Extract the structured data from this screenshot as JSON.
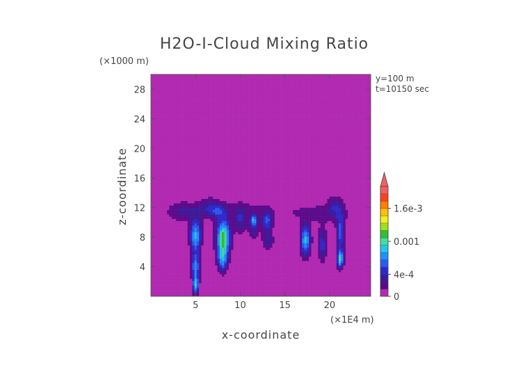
{
  "chart_data": {
    "type": "heatmap",
    "title": "H2O-I-Cloud Mixing Ratio",
    "xlabel": "x-coordinate",
    "ylabel": "z-coordinate",
    "x_unit": "(×1E4 m)",
    "y_unit": "(×1000 m)",
    "annotations": [
      "y=100 m",
      "t=10150 sec"
    ],
    "x_ticks": [
      {
        "value": 5,
        "label": "5"
      },
      {
        "value": 10,
        "label": "10"
      },
      {
        "value": 15,
        "label": "15"
      },
      {
        "value": 20,
        "label": "20"
      }
    ],
    "y_ticks": [
      {
        "value": 4,
        "label": "4"
      },
      {
        "value": 8,
        "label": "8"
      },
      {
        "value": 12,
        "label": "12"
      },
      {
        "value": 16,
        "label": "16"
      },
      {
        "value": 20,
        "label": "20"
      },
      {
        "value": 24,
        "label": "24"
      },
      {
        "value": 28,
        "label": "28"
      }
    ],
    "xlim": [
      0,
      24.6
    ],
    "ylim": [
      0,
      30
    ],
    "colorbar": {
      "min": 0,
      "max": 0.002,
      "labels": [
        {
          "value": 0,
          "label": "0"
        },
        {
          "value": 0.0004,
          "label": "4e-4"
        },
        {
          "value": 0.001,
          "label": "0.001"
        },
        {
          "value": 0.0016,
          "label": "1.6e-3"
        }
      ],
      "extend": "max",
      "colors": [
        "#b42ab4",
        "#5a0a8c",
        "#3a1a9a",
        "#2a2ad0",
        "#2a5af0",
        "#1e90ff",
        "#20c8f0",
        "#40e0a0",
        "#30c030",
        "#a0e020",
        "#f0f020",
        "#ffc000",
        "#ff8000",
        "#ff4020",
        "#f06060"
      ]
    },
    "field": [
      {
        "x": 3.5,
        "z": 11.5,
        "sx": 1.3,
        "sz": 1.0,
        "v": 0.0003
      },
      {
        "x": 5.0,
        "z": 8.2,
        "sx": 0.45,
        "sz": 1.6,
        "v": 0.0009
      },
      {
        "x": 5.0,
        "z": 4.0,
        "sx": 0.3,
        "sz": 1.2,
        "v": 0.0008
      },
      {
        "x": 5.0,
        "z": 1.5,
        "sx": 0.25,
        "sz": 0.9,
        "v": 0.0009
      },
      {
        "x": 8.1,
        "z": 8.0,
        "sx": 0.55,
        "sz": 1.7,
        "v": 0.0012
      },
      {
        "x": 8.0,
        "z": 5.0,
        "sx": 0.4,
        "sz": 1.2,
        "v": 0.0007
      },
      {
        "x": 6.5,
        "z": 12.0,
        "sx": 0.8,
        "sz": 1.0,
        "v": 0.0003
      },
      {
        "x": 7.5,
        "z": 11.5,
        "sx": 0.6,
        "sz": 0.7,
        "v": 0.0003
      },
      {
        "x": 10.0,
        "z": 10.2,
        "sx": 0.5,
        "sz": 1.2,
        "v": 0.0004
      },
      {
        "x": 11.5,
        "z": 9.2,
        "sx": 0.4,
        "sz": 1.0,
        "v": 0.0004
      },
      {
        "x": 11.5,
        "z": 10.4,
        "sx": 0.25,
        "sz": 0.5,
        "v": 0.0007
      },
      {
        "x": 13.0,
        "z": 10.2,
        "sx": 0.45,
        "sz": 0.9,
        "v": 0.0006
      },
      {
        "x": 13.1,
        "z": 7.6,
        "sx": 0.45,
        "sz": 0.9,
        "v": 0.0004
      },
      {
        "x": 10.0,
        "z": 11.8,
        "sx": 3.0,
        "sz": 0.9,
        "v": 0.00018
      },
      {
        "x": 17.3,
        "z": 7.6,
        "sx": 0.4,
        "sz": 1.5,
        "v": 0.0009
      },
      {
        "x": 19.2,
        "z": 7.0,
        "sx": 0.35,
        "sz": 1.6,
        "v": 0.0005
      },
      {
        "x": 20.5,
        "z": 12.3,
        "sx": 0.5,
        "sz": 1.0,
        "v": 0.0003
      },
      {
        "x": 21.2,
        "z": 8.5,
        "sx": 0.3,
        "sz": 2.2,
        "v": 0.0006
      },
      {
        "x": 21.2,
        "z": 5.0,
        "sx": 0.25,
        "sz": 0.8,
        "v": 0.0009
      },
      {
        "x": 20.5,
        "z": 11.2,
        "sx": 2.5,
        "sz": 1.2,
        "v": 0.00015
      },
      {
        "x": 17.5,
        "z": 11.3,
        "sx": 2.2,
        "sz": 0.8,
        "v": 0.00012
      }
    ]
  }
}
